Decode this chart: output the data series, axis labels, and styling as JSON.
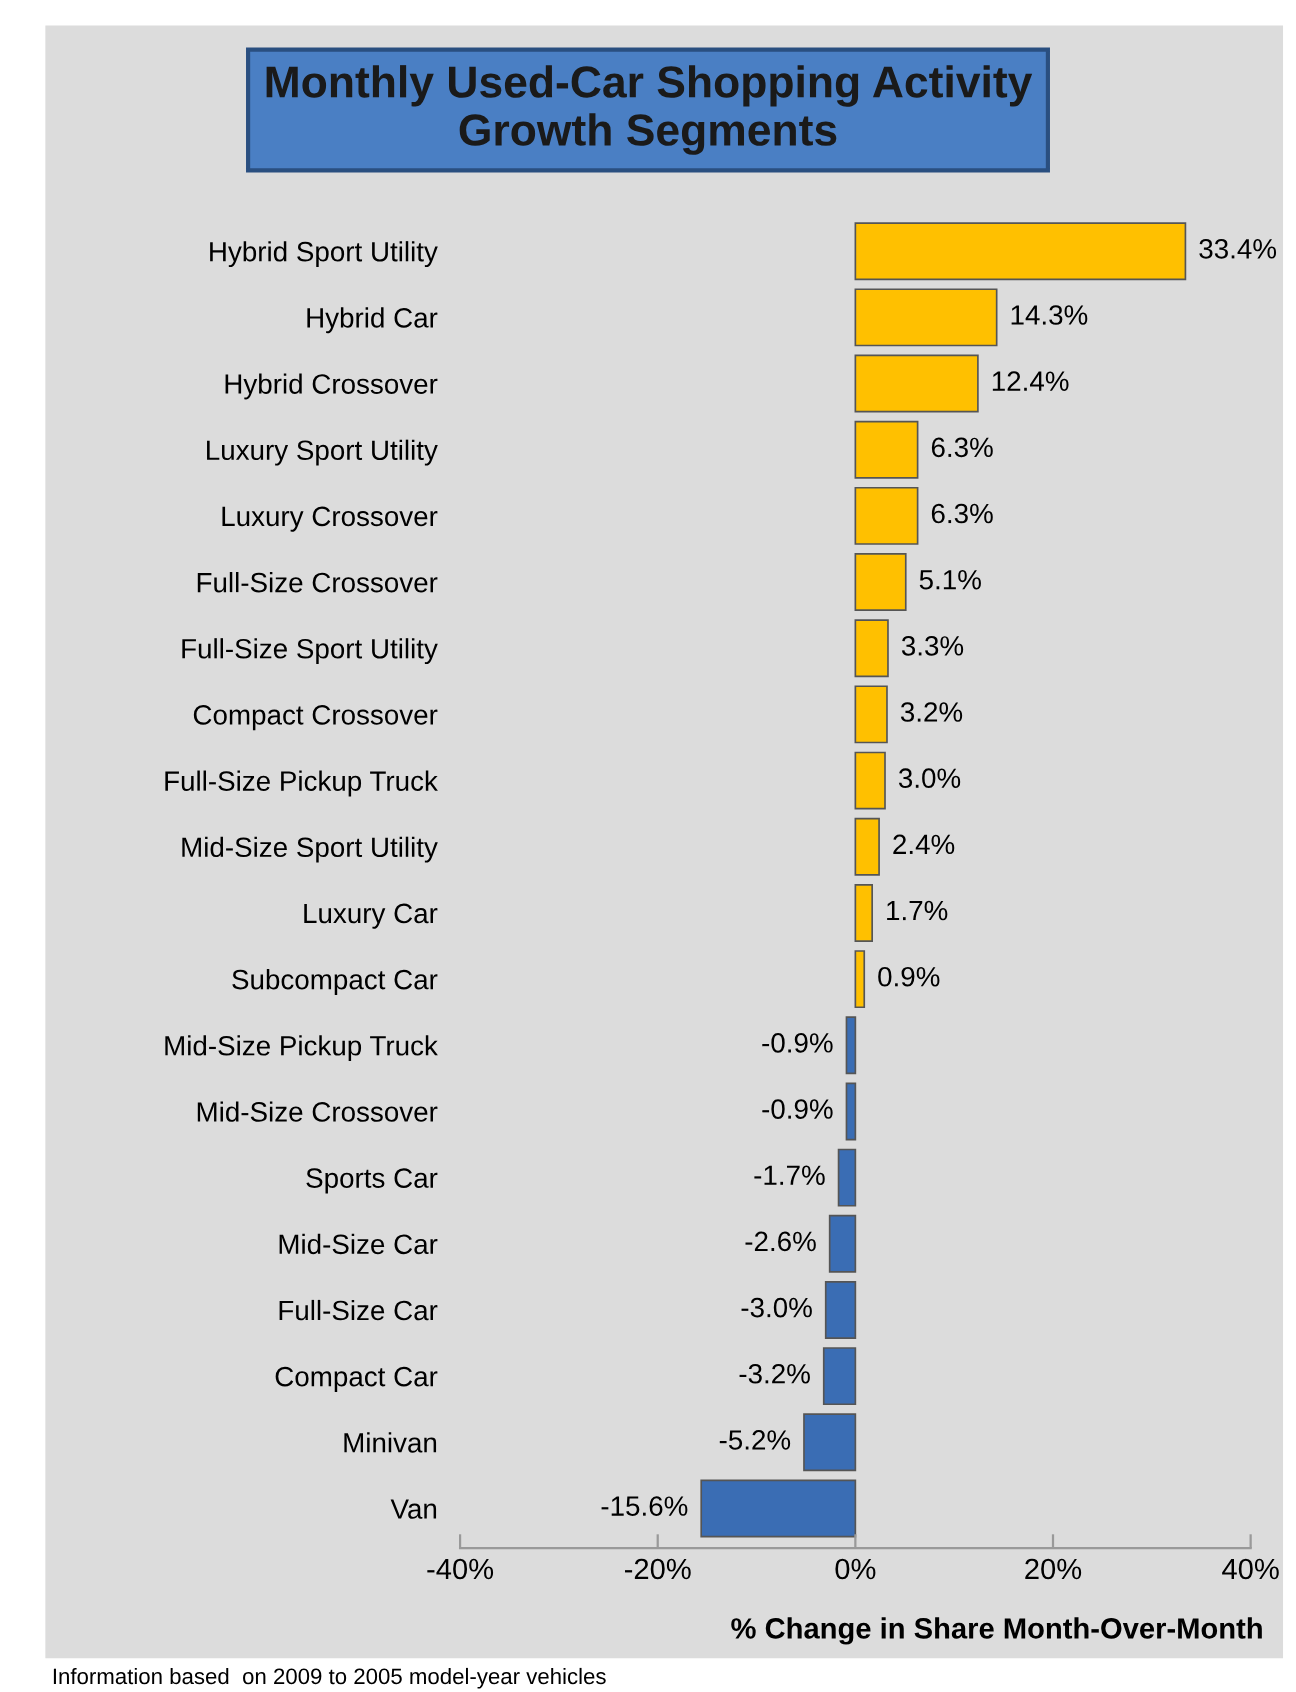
{
  "chart_data": {
    "type": "bar",
    "orientation": "horizontal",
    "title": "Monthly Used-Car Shopping Activity\nGrowth Segments",
    "categories": [
      "Hybrid Sport Utility",
      "Hybrid Car",
      "Hybrid Crossover",
      "Luxury Sport Utility",
      "Luxury Crossover",
      "Full-Size Crossover",
      "Full-Size Sport Utility",
      "Compact Crossover",
      "Full-Size Pickup Truck",
      "Mid-Size Sport Utility",
      "Luxury Car",
      "Subcompact Car",
      "Mid-Size Pickup Truck",
      "Mid-Size Crossover",
      "Sports Car",
      "Mid-Size Car",
      "Full-Size Car",
      "Compact Car",
      "Minivan",
      "Van"
    ],
    "values": [
      33.4,
      14.3,
      12.4,
      6.3,
      6.3,
      5.1,
      3.3,
      3.2,
      3.0,
      2.4,
      1.7,
      0.9,
      -0.9,
      -0.9,
      -1.7,
      -2.6,
      -3.0,
      -3.2,
      -5.2,
      -15.6
    ],
    "value_labels": [
      "33.4%",
      "14.3%",
      "12.4%",
      "6.3%",
      "6.3%",
      "5.1%",
      "3.3%",
      "3.2%",
      "3.0%",
      "2.4%",
      "1.7%",
      "0.9%",
      "-0.9%",
      "-0.9%",
      "-1.7%",
      "-2.6%",
      "-3.0%",
      "-3.2%",
      "-5.2%",
      "-15.6%"
    ],
    "colors": [
      "#ffc000",
      "#ffc000",
      "#ffc000",
      "#ffc000",
      "#ffc000",
      "#ffc000",
      "#ffc000",
      "#ffc000",
      "#ffc000",
      "#ffc000",
      "#ffc000",
      "#ffc000",
      "#3a6db4",
      "#3a6db4",
      "#3a6db4",
      "#3a6db4",
      "#3a6db4",
      "#3a6db4",
      "#3a6db4",
      "#3a6db4"
    ],
    "xlim": [
      -40,
      40
    ],
    "xticks": [
      {
        "value": -40,
        "label": "-40%"
      },
      {
        "value": -20,
        "label": "-20%"
      },
      {
        "value": 0,
        "label": "0%"
      },
      {
        "value": 20,
        "label": "20%"
      },
      {
        "value": 40,
        "label": "40%"
      }
    ],
    "xlabel": "% Change in Share Month-Over-Month",
    "annotations": [
      "Information based  on 2009 to 2005 model-year vehicles"
    ],
    "grid": false,
    "legend": false
  }
}
